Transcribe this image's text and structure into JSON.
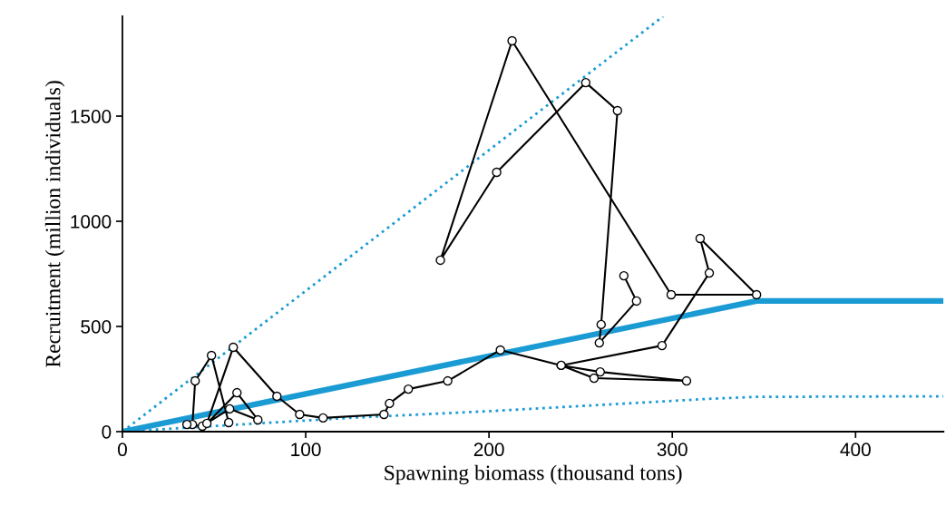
{
  "chart_data": {
    "type": "line",
    "xlabel": "Spawning biomass (thousand tons)",
    "ylabel": "Recruitment (million individuals)",
    "xlim": [
      0,
      448
    ],
    "ylim": [
      0,
      1975
    ],
    "xticks": [
      0,
      100,
      200,
      300,
      400
    ],
    "yticks": [
      0,
      500,
      1000,
      1500
    ],
    "grid": false,
    "legend": false,
    "series": [
      {
        "color": "#1a9bd3",
        "line_style": "dotted",
        "marker": "none",
        "x": [
          0,
          295
        ],
        "values": [
          0,
          1974
        ]
      },
      {
        "color": "#1a9bd3",
        "line_style": "dotted",
        "marker": "none",
        "x": [
          0,
          123,
          204,
          318,
          345,
          448
        ],
        "values": [
          0,
          65,
          99,
          155,
          165,
          168
        ]
      },
      {
        "color": "#1a9bd3",
        "line_style": "solid",
        "marker": "none",
        "x": [
          0,
          346,
          448
        ],
        "values": [
          0,
          621,
          621
        ]
      },
      {
        "color": "#000000",
        "line_style": "solid",
        "marker": "circle",
        "x": [
          58,
          48.6,
          39.7,
          38.2,
          35.2,
          43.6,
          58.5,
          73.9,
          62.5,
          46.1,
          60.5,
          84.3,
          96.7,
          109.5,
          142.7,
          145.7,
          156,
          177.5,
          206.2,
          239.4,
          260.7,
          307.8,
          257.3,
          239.4,
          294.4,
          320.2,
          315.2,
          346,
          299.4,
          212.6,
          173.5,
          204.2,
          252.8,
          270.1,
          261.2,
          260.2,
          280.5,
          273.6
        ],
        "values": [
          43,
          362,
          241,
          34,
          34,
          26,
          108,
          56,
          185,
          39,
          401,
          168,
          82,
          65,
          82,
          134,
          202,
          241,
          388,
          315,
          284,
          241,
          254,
          315,
          409,
          754,
          918,
          651,
          651,
          1858,
          815,
          1233,
          1659,
          1526,
          509,
          422,
          621,
          741
        ]
      }
    ]
  }
}
